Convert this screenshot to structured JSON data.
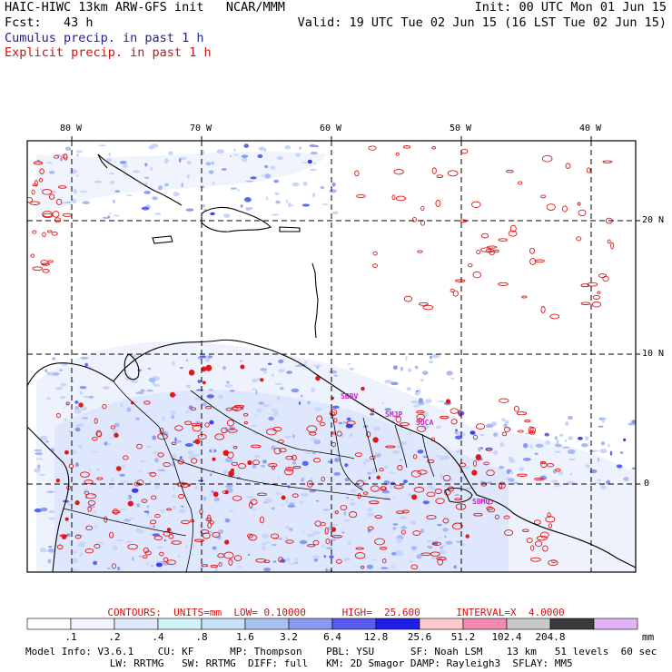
{
  "header": {
    "title_left": "HAIC-HIWC 13km ARW-GFS init   NCAR/MMM",
    "init": "Init: 00 UTC Mon 01 Jun 15",
    "fcst": "Fcst:   43 h",
    "valid": "Valid: 19 UTC Tue 02 Jun 15 (16 LST Tue 02 Jun 15)",
    "field1": "Cumulus precip. in past 1 h",
    "field2": "Explicit precip. in past 1 h"
  },
  "map": {
    "lon_labels": [
      "80 W",
      "70 W",
      "60 W",
      "50 W",
      "40 W"
    ],
    "lat_labels": [
      "20 N",
      "10 N",
      "0"
    ],
    "stations": [
      "SBBV",
      "SMJP",
      "SOCA",
      "SBMQ"
    ],
    "colors": {
      "cumulus": "#4f5fe8",
      "explicit": "#e01818",
      "coast": "#000000"
    }
  },
  "contours": {
    "text": "CONTOURS:  UNITS=mm  LOW= 0.10000      HIGH=  25.600      INTERVAL=X  4.0000"
  },
  "scale": {
    "labels": [
      ".1",
      ".2",
      ".4",
      ".8",
      "1.6",
      "3.2",
      "6.4",
      "12.8",
      "25.6",
      "51.2",
      "102.4",
      "204.8"
    ],
    "units": "mm",
    "colors": [
      "#ffffff",
      "#f2f4ff",
      "#e2e8fc",
      "#d2f2fa",
      "#c8e2fa",
      "#a9c2f2",
      "#8a9af2",
      "#5a5af0",
      "#1f1fe8",
      "#fccaca",
      "#f48ab2",
      "#c8c8c8",
      "#3a3a3a",
      "#e2b2f6"
    ]
  },
  "model_info": {
    "line1": "Model Info: V3.6.1    CU: KF      MP: Thompson    PBL: YSU      SF: Noah LSM    13 km   51 levels  60 sec",
    "line2": "              LW: RRTMG   SW: RRTMG  DIFF: full   KM: 2D Smagor DAMP: Rayleigh3  SFLAY: MM5"
  }
}
